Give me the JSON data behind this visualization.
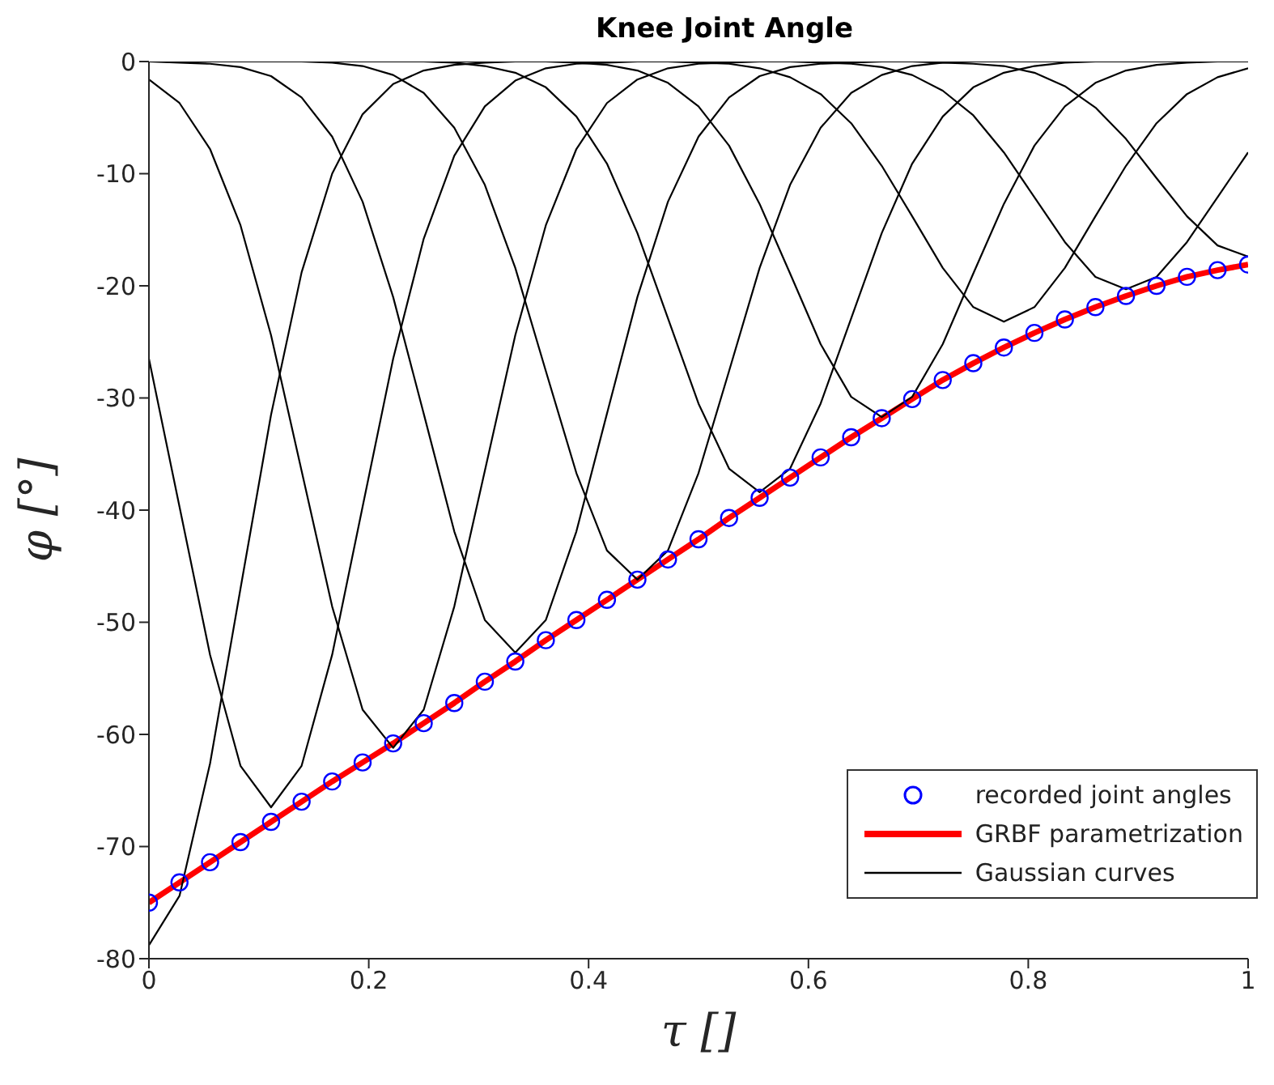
{
  "chart_data": {
    "type": "line",
    "title": "Knee Joint Angle",
    "xlabel": "τ []",
    "ylabel": "φ [°]",
    "x": [
      0,
      0.0278,
      0.0556,
      0.0833,
      0.1111,
      0.1389,
      0.1667,
      0.1944,
      0.2222,
      0.25,
      0.2778,
      0.3056,
      0.3333,
      0.3611,
      0.3889,
      0.4167,
      0.4444,
      0.4722,
      0.5,
      0.5278,
      0.5556,
      0.5833,
      0.6111,
      0.6389,
      0.6667,
      0.6944,
      0.7222,
      0.75,
      0.7778,
      0.8056,
      0.8333,
      0.8611,
      0.8889,
      0.9167,
      0.9444,
      0.9722,
      1
    ],
    "xlim": [
      0,
      1
    ],
    "xticks": [
      0,
      0.2,
      0.4,
      0.6,
      0.8,
      1
    ],
    "ylim": [
      -80,
      0
    ],
    "yticks": [
      -80,
      -70,
      -60,
      -50,
      -40,
      -30,
      -20,
      -10,
      0
    ],
    "legend": "bottom right",
    "grid": false,
    "line_style": "solid",
    "series": [
      {
        "name": "recorded joint angles",
        "type": "scatter",
        "marker": "circle",
        "color": "#0000ff",
        "values": [
          -75.0,
          -73.2,
          -71.4,
          -69.6,
          -67.8,
          -66.0,
          -64.2,
          -62.5,
          -60.8,
          -59.0,
          -57.2,
          -55.3,
          -53.5,
          -51.6,
          -49.8,
          -48.0,
          -46.2,
          -44.4,
          -42.6,
          -40.7,
          -38.9,
          -37.1,
          -35.3,
          -33.5,
          -31.8,
          -30.1,
          -28.4,
          -26.9,
          -25.5,
          -24.2,
          -23.0,
          -21.9,
          -20.9,
          -20.0,
          -19.2,
          -18.6,
          -18.1
        ]
      },
      {
        "name": "GRBF parametrization",
        "marker": "none",
        "color": "#ff0000",
        "values": [
          -75.0,
          -73.2,
          -71.4,
          -69.6,
          -67.8,
          -66.0,
          -64.2,
          -62.5,
          -60.8,
          -59.0,
          -57.2,
          -55.3,
          -53.5,
          -51.6,
          -49.8,
          -48.0,
          -46.2,
          -44.4,
          -42.6,
          -40.7,
          -38.9,
          -37.1,
          -35.3,
          -33.5,
          -31.8,
          -30.1,
          -28.4,
          -26.9,
          -25.5,
          -24.2,
          -23.0,
          -21.9,
          -20.9,
          -20.0,
          -19.2,
          -18.6,
          -18.1
        ]
      },
      {
        "name": "Gaussian curves",
        "marker": "none",
        "color": "#000000",
        "values": [
          -78.8,
          -74.4,
          -62.6,
          -47.0,
          -31.5,
          -18.8,
          -10.0,
          -4.7,
          -2.0,
          -0.8,
          -0.3,
          -0.1,
          0,
          0,
          0,
          0,
          0,
          0,
          0,
          0,
          0,
          0,
          0,
          0,
          0,
          0,
          0,
          0,
          0,
          0,
          0,
          0,
          0,
          0,
          0,
          0,
          0
        ]
      },
      {
        "type": "line",
        "marker": "none",
        "color": "#000000",
        "values": [
          -26.5,
          -39.7,
          -52.9,
          -62.8,
          -66.5,
          -62.8,
          -52.9,
          -39.7,
          -26.5,
          -15.8,
          -8.4,
          -4.0,
          -1.7,
          -0.6,
          -0.2,
          -0.1,
          0,
          0,
          0,
          0,
          0,
          0,
          0,
          0,
          0,
          0,
          0,
          0,
          0,
          0,
          0,
          0,
          0,
          0,
          0,
          0,
          0
        ]
      },
      {
        "type": "line",
        "marker": "none",
        "color": "#000000",
        "values": [
          -1.6,
          -3.7,
          -7.8,
          -14.6,
          -24.4,
          -36.5,
          -48.6,
          -57.8,
          -61.2,
          -57.8,
          -48.6,
          -36.5,
          -24.4,
          -14.6,
          -7.8,
          -3.7,
          -1.6,
          -0.6,
          -0.2,
          -0.1,
          0,
          0,
          0,
          0,
          0,
          0,
          0,
          0,
          0,
          0,
          0,
          0,
          0,
          0,
          0,
          0,
          0
        ]
      },
      {
        "type": "line",
        "marker": "none",
        "color": "#000000",
        "values": [
          0,
          -0.1,
          -0.2,
          -0.5,
          -1.3,
          -3.2,
          -6.7,
          -12.5,
          -21.0,
          -31.4,
          -41.9,
          -49.8,
          -52.7,
          -49.8,
          -41.9,
          -31.4,
          -21.0,
          -12.5,
          -6.7,
          -3.2,
          -1.3,
          -0.5,
          -0.2,
          -0.1,
          0,
          0,
          0,
          0,
          0,
          0,
          0,
          0,
          0,
          0,
          0,
          0,
          0
        ]
      },
      {
        "type": "line",
        "marker": "none",
        "color": "#000000",
        "values": [
          0,
          0,
          0,
          0,
          0,
          0,
          -0.1,
          -0.4,
          -1.2,
          -2.8,
          -5.9,
          -11.0,
          -18.4,
          -27.6,
          -36.7,
          -43.6,
          -46.2,
          -43.6,
          -36.7,
          -27.6,
          -18.4,
          -11.0,
          -5.9,
          -2.8,
          -1.2,
          -0.4,
          -0.1,
          0,
          0,
          0,
          0,
          0,
          0,
          0,
          0,
          0,
          0
        ]
      },
      {
        "type": "line",
        "marker": "none",
        "color": "#000000",
        "values": [
          0,
          0,
          0,
          0,
          0,
          0,
          0,
          0,
          0,
          0,
          -0.1,
          -0.4,
          -1.0,
          -2.3,
          -4.9,
          -9.1,
          -15.3,
          -22.9,
          -30.5,
          -36.3,
          -38.4,
          -36.3,
          -30.5,
          -22.9,
          -15.3,
          -9.1,
          -4.9,
          -2.3,
          -1.0,
          -0.4,
          -0.1,
          0,
          0,
          0,
          0,
          0,
          0
        ]
      },
      {
        "type": "line",
        "marker": "none",
        "color": "#000000",
        "values": [
          0,
          0,
          0,
          0,
          0,
          0,
          0,
          0,
          0,
          0,
          0,
          0,
          0,
          0,
          -0.1,
          -0.3,
          -0.8,
          -1.9,
          -4.0,
          -7.5,
          -12.7,
          -18.9,
          -25.2,
          -29.9,
          -31.7,
          -29.9,
          -25.2,
          -18.9,
          -12.7,
          -7.5,
          -4.0,
          -1.9,
          -0.8,
          -0.3,
          -0.1,
          0,
          0
        ]
      },
      {
        "type": "line",
        "marker": "none",
        "color": "#000000",
        "values": [
          0,
          0,
          0,
          0,
          0,
          0,
          0,
          0,
          0,
          0,
          0,
          0,
          0,
          0,
          0,
          0,
          0,
          0,
          -0.1,
          -0.2,
          -0.6,
          -1.4,
          -2.9,
          -5.5,
          -9.3,
          -13.8,
          -18.4,
          -21.9,
          -23.2,
          -21.9,
          -18.4,
          -13.8,
          -9.3,
          -5.5,
          -2.9,
          -1.4,
          -0.6
        ]
      },
      {
        "type": "line",
        "marker": "none",
        "color": "#000000",
        "values": [
          0,
          0,
          0,
          0,
          0,
          0,
          0,
          0,
          0,
          0,
          0,
          0,
          0,
          0,
          0,
          0,
          0,
          0,
          0,
          0,
          0,
          0,
          -0.1,
          -0.2,
          -0.5,
          -1.2,
          -2.6,
          -4.8,
          -8.1,
          -12.1,
          -16.1,
          -19.2,
          -20.3,
          -19.2,
          -16.1,
          -12.1,
          -8.1
        ]
      },
      {
        "type": "line",
        "marker": "none",
        "color": "#000000",
        "values": [
          0,
          0,
          0,
          0,
          0,
          0,
          0,
          0,
          0,
          0,
          0,
          0,
          0,
          0,
          0,
          0,
          0,
          0,
          0,
          0,
          0,
          0,
          0,
          0,
          0,
          0,
          -0.1,
          -0.2,
          -0.4,
          -1.0,
          -2.2,
          -4.1,
          -6.9,
          -10.4,
          -13.8,
          -16.4,
          -17.4
        ]
      }
    ]
  }
}
